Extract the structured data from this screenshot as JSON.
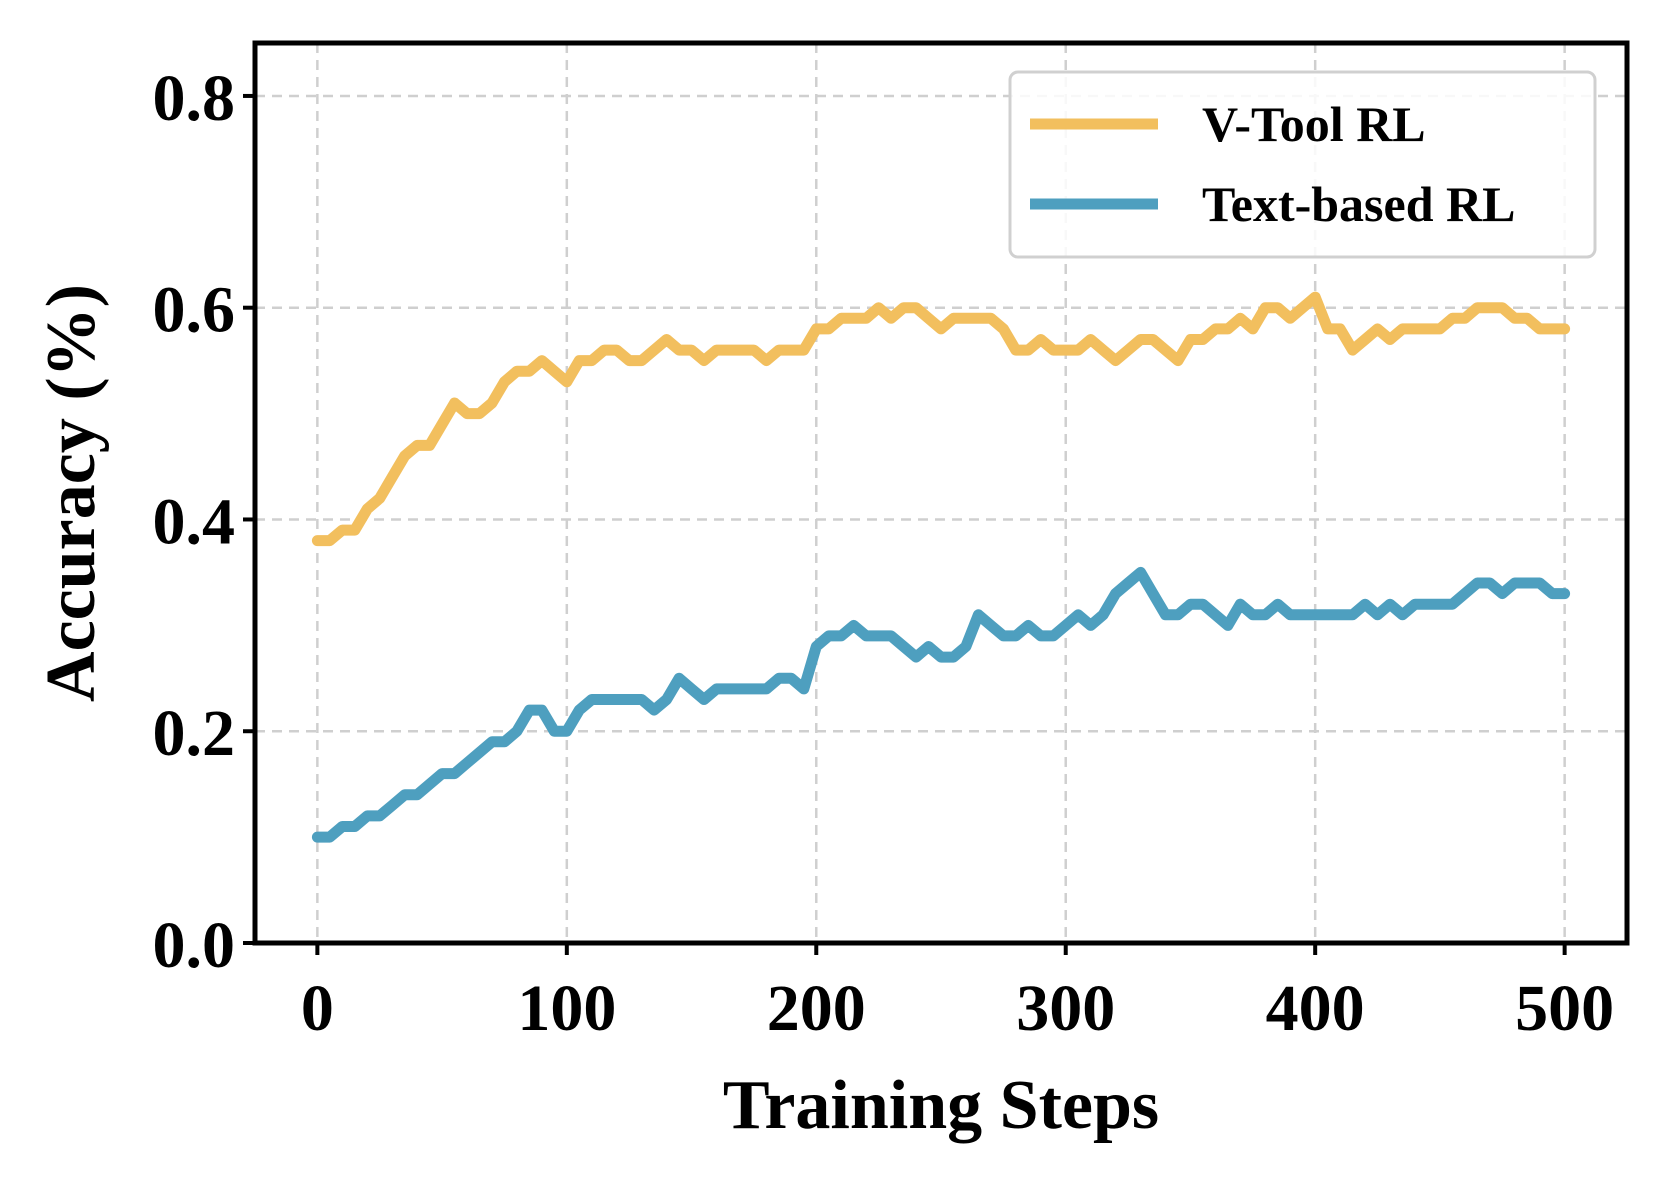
{
  "chart_data": {
    "type": "line",
    "title": "",
    "xlabel": "Training Steps",
    "ylabel": "Accuracy (%)",
    "xlim": [
      -25,
      525
    ],
    "ylim": [
      0.0,
      0.85
    ],
    "xticks": [
      0,
      100,
      200,
      300,
      400,
      500
    ],
    "xtick_labels": [
      "0",
      "100",
      "200",
      "300",
      "400",
      "500"
    ],
    "yticks": [
      0.0,
      0.2,
      0.4,
      0.6,
      0.8
    ],
    "ytick_labels": [
      "0.0",
      "0.2",
      "0.4",
      "0.6",
      "0.8"
    ],
    "grid": true,
    "legend_position": "top-right",
    "series": [
      {
        "name": "V-Tool RL",
        "color": "#F2BF5E",
        "x": [
          0,
          5,
          10,
          15,
          20,
          25,
          30,
          35,
          40,
          45,
          50,
          55,
          60,
          65,
          70,
          75,
          80,
          85,
          90,
          95,
          100,
          105,
          110,
          115,
          120,
          125,
          130,
          135,
          140,
          145,
          150,
          155,
          160,
          165,
          170,
          175,
          180,
          185,
          190,
          195,
          200,
          205,
          210,
          215,
          220,
          225,
          230,
          235,
          240,
          245,
          250,
          255,
          260,
          265,
          270,
          275,
          280,
          285,
          290,
          295,
          300,
          305,
          310,
          315,
          320,
          325,
          330,
          335,
          340,
          345,
          350,
          355,
          360,
          365,
          370,
          375,
          380,
          385,
          390,
          395,
          400,
          405,
          410,
          415,
          420,
          425,
          430,
          435,
          440,
          445,
          450,
          455,
          460,
          465,
          470,
          475,
          480,
          485,
          490,
          495,
          500
        ],
        "y": [
          0.38,
          0.38,
          0.39,
          0.39,
          0.41,
          0.42,
          0.44,
          0.46,
          0.47,
          0.47,
          0.49,
          0.51,
          0.5,
          0.5,
          0.51,
          0.53,
          0.54,
          0.54,
          0.55,
          0.54,
          0.53,
          0.55,
          0.55,
          0.56,
          0.56,
          0.55,
          0.55,
          0.56,
          0.57,
          0.56,
          0.56,
          0.55,
          0.56,
          0.56,
          0.56,
          0.56,
          0.55,
          0.56,
          0.56,
          0.56,
          0.58,
          0.58,
          0.59,
          0.59,
          0.59,
          0.6,
          0.59,
          0.6,
          0.6,
          0.59,
          0.58,
          0.59,
          0.59,
          0.59,
          0.59,
          0.58,
          0.56,
          0.56,
          0.57,
          0.56,
          0.56,
          0.56,
          0.57,
          0.56,
          0.55,
          0.56,
          0.57,
          0.57,
          0.56,
          0.55,
          0.57,
          0.57,
          0.58,
          0.58,
          0.59,
          0.58,
          0.6,
          0.6,
          0.59,
          0.6,
          0.61,
          0.58,
          0.58,
          0.56,
          0.57,
          0.58,
          0.57,
          0.58,
          0.58,
          0.58,
          0.58,
          0.59,
          0.59,
          0.6,
          0.6,
          0.6,
          0.59,
          0.59,
          0.58,
          0.58,
          0.58
        ]
      },
      {
        "name": "Text-based RL",
        "color": "#4E9FBF",
        "x": [
          0,
          5,
          10,
          15,
          20,
          25,
          30,
          35,
          40,
          45,
          50,
          55,
          60,
          65,
          70,
          75,
          80,
          85,
          90,
          95,
          100,
          105,
          110,
          115,
          120,
          125,
          130,
          135,
          140,
          145,
          150,
          155,
          160,
          165,
          170,
          175,
          180,
          185,
          190,
          195,
          200,
          205,
          210,
          215,
          220,
          225,
          230,
          235,
          240,
          245,
          250,
          255,
          260,
          265,
          270,
          275,
          280,
          285,
          290,
          295,
          300,
          305,
          310,
          315,
          320,
          325,
          330,
          335,
          340,
          345,
          350,
          355,
          360,
          365,
          370,
          375,
          380,
          385,
          390,
          395,
          400,
          405,
          410,
          415,
          420,
          425,
          430,
          435,
          440,
          445,
          450,
          455,
          460,
          465,
          470,
          475,
          480,
          485,
          490,
          495,
          500
        ],
        "y": [
          0.1,
          0.1,
          0.11,
          0.11,
          0.12,
          0.12,
          0.13,
          0.14,
          0.14,
          0.15,
          0.16,
          0.16,
          0.17,
          0.18,
          0.19,
          0.19,
          0.2,
          0.22,
          0.22,
          0.2,
          0.2,
          0.22,
          0.23,
          0.23,
          0.23,
          0.23,
          0.23,
          0.22,
          0.23,
          0.25,
          0.24,
          0.23,
          0.24,
          0.24,
          0.24,
          0.24,
          0.24,
          0.25,
          0.25,
          0.24,
          0.28,
          0.29,
          0.29,
          0.3,
          0.29,
          0.29,
          0.29,
          0.28,
          0.27,
          0.28,
          0.27,
          0.27,
          0.28,
          0.31,
          0.3,
          0.29,
          0.29,
          0.3,
          0.29,
          0.29,
          0.3,
          0.31,
          0.3,
          0.31,
          0.33,
          0.34,
          0.35,
          0.33,
          0.31,
          0.31,
          0.32,
          0.32,
          0.31,
          0.3,
          0.32,
          0.31,
          0.31,
          0.32,
          0.31,
          0.31,
          0.31,
          0.31,
          0.31,
          0.31,
          0.32,
          0.31,
          0.32,
          0.31,
          0.32,
          0.32,
          0.32,
          0.32,
          0.33,
          0.34,
          0.34,
          0.33,
          0.34,
          0.34,
          0.34,
          0.33,
          0.33
        ]
      }
    ]
  }
}
